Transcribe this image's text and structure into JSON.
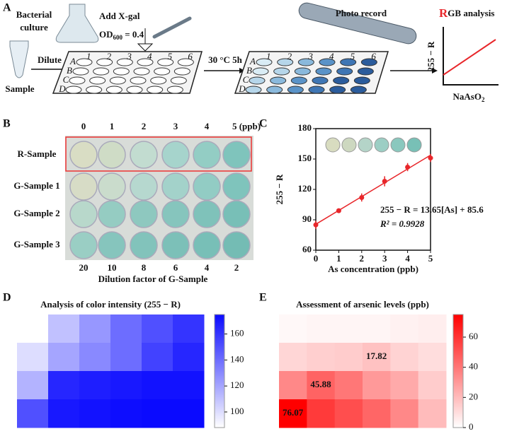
{
  "panel_labels": [
    "A",
    "B",
    "C",
    "D",
    "E"
  ],
  "panel_a": {
    "culture": [
      "Bacterial",
      "culture"
    ],
    "sample": "Sample",
    "dilute": "Dilute",
    "add": "Add X-gal",
    "od": {
      "base": "OD",
      "sub": "600",
      "rest": " = 0.4"
    },
    "incubate": "30 °C 5h",
    "photo": "Photo record",
    "rgb": {
      "first": "R",
      "rest": "GB analysis"
    },
    "y_axis": "255 − R",
    "x_axis": {
      "base": "NaAsO",
      "sub": "2"
    },
    "plate_rows": [
      "A",
      "B",
      "C",
      "D"
    ],
    "plate_cols": [
      "1",
      "2",
      "3",
      "4",
      "5",
      "6"
    ]
  },
  "panel_b": {
    "columns": [
      "0",
      "1",
      "2",
      "3",
      "4",
      "5 (ppb)"
    ],
    "rows": [
      "R-Sample",
      "G-Sample 1",
      "G-Sample 2",
      "G-Sample 3"
    ],
    "dilution": [
      "20",
      "10",
      "8",
      "6",
      "4",
      "2"
    ],
    "dilution_title": "Dilution factor of G-Sample"
  },
  "chart_data": [
    {
      "type": "scatter",
      "x": [
        0,
        1,
        2,
        3,
        4,
        5
      ],
      "values": [
        85,
        99,
        112,
        128,
        142,
        151
      ],
      "errors": [
        4,
        1,
        4,
        5,
        4,
        4
      ],
      "color": "#e8262a",
      "xlim": [
        0,
        5
      ],
      "ylim": [
        60,
        180
      ],
      "xticks": [
        0,
        1,
        2,
        3,
        4,
        5
      ],
      "yticks": [
        60,
        90,
        120,
        150,
        180
      ],
      "xlabel": "As concentration (ppb)",
      "ylabel": "255 − R",
      "fit": {
        "slope": 13.65,
        "intercept": 85.6
      },
      "annotations": [
        "255 − R = 13.65[As] + 85.6",
        "R² = 0.9928"
      ]
    },
    {
      "type": "heatmap",
      "title": "Analysis of color intensity (255 − R)",
      "color": "#0a0aff",
      "values": [
        [
          88,
          110,
          125,
          140,
          150,
          160
        ],
        [
          100,
          120,
          130,
          140,
          155,
          165
        ],
        [
          115,
          165,
          168,
          170,
          172,
          172
        ],
        [
          150,
          170,
          172,
          174,
          175,
          175
        ]
      ],
      "colorbar": {
        "lim": [
          88,
          175
        ],
        "ticks": [
          100,
          120,
          140,
          160
        ]
      }
    },
    {
      "type": "heatmap",
      "title": "Assessment of arsenic levels (ppb)",
      "color": "#ff0000",
      "values": [
        [
          2,
          3,
          3,
          3,
          4,
          5
        ],
        [
          12,
          14,
          15,
          17.82,
          13,
          10
        ],
        [
          35,
          45.88,
          40,
          30,
          25,
          15
        ],
        [
          76.07,
          58,
          52,
          45,
          35,
          20
        ]
      ],
      "value_labels": [
        [
          null,
          null,
          null,
          null,
          null,
          null
        ],
        [
          null,
          null,
          null,
          "17.82",
          null,
          null
        ],
        [
          null,
          "45.88",
          null,
          null,
          null,
          null
        ],
        [
          "76.07",
          null,
          null,
          null,
          null,
          null
        ]
      ],
      "colorbar": {
        "lim": [
          0,
          75
        ],
        "ticks": [
          0,
          20,
          40,
          60
        ]
      }
    }
  ]
}
